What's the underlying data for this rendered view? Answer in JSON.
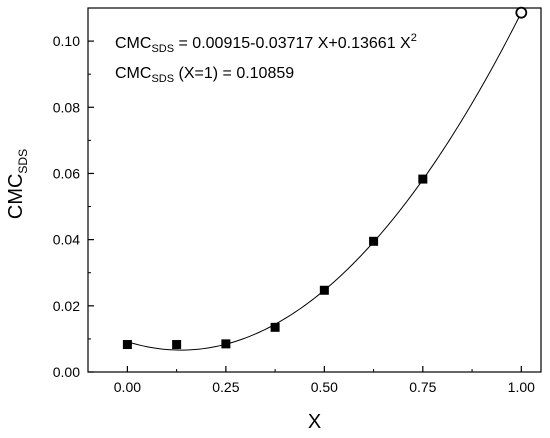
{
  "chart_data": {
    "type": "scatter",
    "title": "",
    "xlabel": "X",
    "ylabel": {
      "main": "CMC",
      "sub": "SDS"
    },
    "xlim": [
      -0.1,
      1.05
    ],
    "ylim": [
      0,
      0.11
    ],
    "x_ticks": [
      0.0,
      0.25,
      0.5,
      0.75,
      1.0
    ],
    "x_tick_labels": [
      "0.00",
      "0.25",
      "0.50",
      "0.75",
      "1.00"
    ],
    "y_ticks": [
      0.0,
      0.02,
      0.04,
      0.06,
      0.08,
      0.1
    ],
    "y_tick_labels": [
      "0.00",
      "0.02",
      "0.04",
      "0.06",
      "0.08",
      "0.10"
    ],
    "grid": false,
    "series": [
      {
        "marker": "filled-square",
        "x": [
          0.0,
          0.125,
          0.25,
          0.375,
          0.5,
          0.625,
          0.75
        ],
        "y": [
          0.0083,
          0.0083,
          0.0085,
          0.0135,
          0.0247,
          0.0395,
          0.0583
        ]
      },
      {
        "marker": "open-circle",
        "x": [
          1.0
        ],
        "y": [
          0.10859
        ]
      },
      {
        "line": "quadratic-fit",
        "coefficients": [
          0.00915,
          -0.03717,
          0.13661
        ],
        "x_range": [
          0.0,
          1.0
        ]
      }
    ],
    "annotations": {
      "line1": {
        "prefix": "CMC",
        "sub": "SDS",
        "mid": " = 0.00915-0.03717 X+0.13661 X",
        "sup": "2"
      },
      "line2": {
        "prefix": "CMC",
        "sub": "SDS",
        "mid": " (X=1) = 0.10859"
      }
    }
  }
}
